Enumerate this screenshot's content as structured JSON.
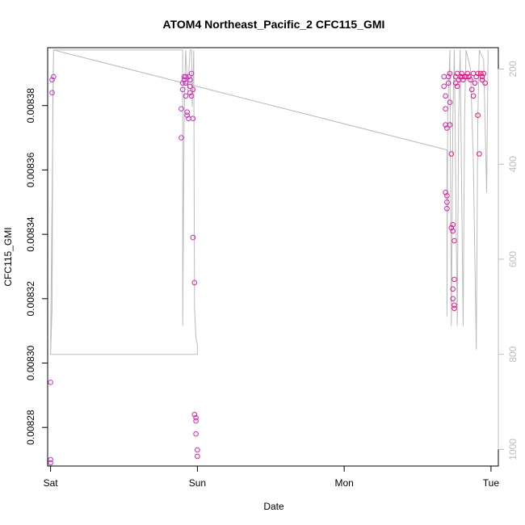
{
  "chart_data": {
    "type": "scatter",
    "title": "ATOM4 Northeast_Pacific_2 CFC115_GMI",
    "xlabel": "Date",
    "ylabel": "CFC115_GMI",
    "x_ticks": [
      "Sat",
      "Sun",
      "Mon",
      "Tue"
    ],
    "xlim": [
      -0.02,
      3.05
    ],
    "ylim": [
      0.008268,
      0.008398
    ],
    "y_ticks": [
      0.00828,
      0.0083,
      0.00832,
      0.00834,
      0.00836,
      0.00838
    ],
    "y_tick_labels": [
      "0.00828",
      "0.00830",
      "0.00832",
      "0.00834",
      "0.00836",
      "0.00838"
    ],
    "y2_ticks": [
      200,
      400,
      600,
      800,
      1000
    ],
    "y2_tick_labels": [
      "200",
      "400",
      "600",
      "800",
      "1000"
    ],
    "y2lim": [
      1035,
      155
    ],
    "grid": false,
    "colors": {
      "points_start": "#cc33cc",
      "points_end": "#ff0077",
      "line": "#bbbbbb"
    },
    "series": [
      {
        "kind": "points",
        "points": [
          [
            0.0,
            0.008294
          ],
          [
            0.0,
            0.00827
          ],
          [
            0.0,
            0.008269
          ],
          [
            0.01,
            0.008384
          ],
          [
            0.01,
            0.008388
          ],
          [
            0.02,
            0.008389
          ],
          [
            0.89,
            0.008379
          ],
          [
            0.89,
            0.00837
          ],
          [
            0.9,
            0.008387
          ],
          [
            0.9,
            0.008385
          ],
          [
            0.91,
            0.008388
          ],
          [
            0.91,
            0.008389
          ],
          [
            0.92,
            0.008389
          ],
          [
            0.92,
            0.008387
          ],
          [
            0.92,
            0.008383
          ],
          [
            0.93,
            0.008378
          ],
          [
            0.93,
            0.008377
          ],
          [
            0.94,
            0.008376
          ],
          [
            0.94,
            0.008389
          ],
          [
            0.95,
            0.008388
          ],
          [
            0.95,
            0.008386
          ],
          [
            0.95,
            0.008384
          ],
          [
            0.96,
            0.00839
          ],
          [
            0.96,
            0.008383
          ],
          [
            0.97,
            0.008376
          ],
          [
            0.97,
            0.008385
          ],
          [
            0.97,
            0.008339
          ],
          [
            0.98,
            0.008325
          ],
          [
            0.98,
            0.008284
          ],
          [
            0.99,
            0.008283
          ],
          [
            0.99,
            0.008282
          ],
          [
            0.99,
            0.008278
          ],
          [
            1.0,
            0.008273
          ],
          [
            1.0,
            0.008271
          ],
          [
            2.68,
            0.008389
          ],
          [
            2.68,
            0.008386
          ],
          [
            2.69,
            0.008383
          ],
          [
            2.69,
            0.008379
          ],
          [
            2.69,
            0.008374
          ],
          [
            2.69,
            0.008353
          ],
          [
            2.7,
            0.008352
          ],
          [
            2.7,
            0.00835
          ],
          [
            2.7,
            0.008348
          ],
          [
            2.7,
            0.008373
          ],
          [
            2.71,
            0.008389
          ],
          [
            2.71,
            0.008387
          ],
          [
            2.72,
            0.008381
          ],
          [
            2.72,
            0.00839
          ],
          [
            2.72,
            0.008374
          ],
          [
            2.73,
            0.008365
          ],
          [
            2.73,
            0.008342
          ],
          [
            2.74,
            0.008343
          ],
          [
            2.74,
            0.008341
          ],
          [
            2.75,
            0.008338
          ],
          [
            2.74,
            0.008323
          ],
          [
            2.74,
            0.00832
          ],
          [
            2.75,
            0.008318
          ],
          [
            2.75,
            0.008317
          ],
          [
            2.75,
            0.008326
          ],
          [
            2.76,
            0.008389
          ],
          [
            2.76,
            0.008387
          ],
          [
            2.77,
            0.00839
          ],
          [
            2.77,
            0.008386
          ],
          [
            2.78,
            0.008388
          ],
          [
            2.79,
            0.008389
          ],
          [
            2.8,
            0.008389
          ],
          [
            2.8,
            0.00839
          ],
          [
            2.81,
            0.008388
          ],
          [
            2.82,
            0.008389
          ],
          [
            2.83,
            0.008389
          ],
          [
            2.84,
            0.00839
          ],
          [
            2.85,
            0.008389
          ],
          [
            2.86,
            0.008388
          ],
          [
            2.87,
            0.008385
          ],
          [
            2.88,
            0.008383
          ],
          [
            2.88,
            0.00839
          ],
          [
            2.89,
            0.008387
          ],
          [
            2.9,
            0.008389
          ],
          [
            2.91,
            0.00839
          ],
          [
            2.91,
            0.008377
          ],
          [
            2.92,
            0.008365
          ],
          [
            2.93,
            0.00839
          ],
          [
            2.94,
            0.008388
          ],
          [
            2.94,
            0.008389
          ],
          [
            2.95,
            0.00839
          ],
          [
            2.96,
            0.008387
          ]
        ]
      },
      {
        "kind": "line",
        "axis": "y2",
        "points": [
          [
            0.0,
            800
          ],
          [
            0.01,
            700
          ],
          [
            0.015,
            260
          ],
          [
            0.02,
            160
          ],
          [
            0.9,
            160
          ],
          [
            0.9,
            740
          ],
          [
            0.91,
            300
          ],
          [
            0.92,
            160
          ],
          [
            0.935,
            250
          ],
          [
            0.95,
            160
          ],
          [
            0.96,
            160
          ],
          [
            0.965,
            280
          ],
          [
            0.975,
            160
          ],
          [
            0.98,
            700
          ],
          [
            0.99,
            765
          ],
          [
            1.0,
            780
          ],
          [
            1.0,
            800
          ],
          [
            0.0,
            800
          ],
          [
            0.02,
            160
          ],
          [
            2.7,
            370
          ],
          [
            2.7,
            720
          ],
          [
            2.705,
            300
          ],
          [
            2.72,
            160
          ],
          [
            2.73,
            740
          ],
          [
            2.74,
            300
          ],
          [
            2.75,
            160
          ],
          [
            2.77,
            740
          ],
          [
            2.78,
            300
          ],
          [
            2.79,
            160
          ],
          [
            2.81,
            740
          ],
          [
            2.82,
            300
          ],
          [
            2.83,
            160
          ],
          [
            2.86,
            200
          ],
          [
            2.88,
            400
          ],
          [
            2.9,
            790
          ],
          [
            2.91,
            300
          ],
          [
            2.92,
            160
          ],
          [
            2.95,
            180
          ],
          [
            2.97,
            460
          ],
          [
            2.98,
            160
          ]
        ]
      }
    ]
  }
}
